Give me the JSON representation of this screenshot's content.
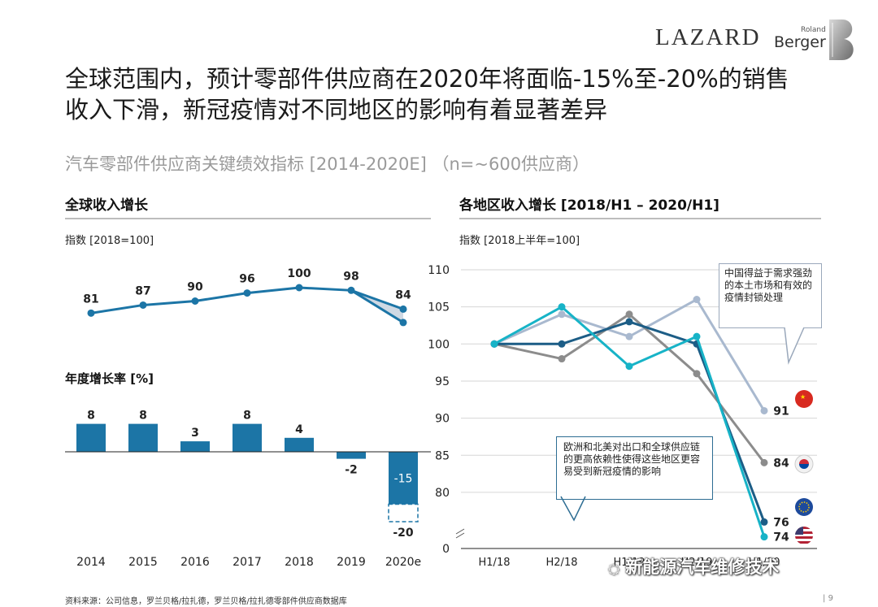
{
  "header": {
    "logo_lazard": "LAZARD",
    "logo_roland": "Roland",
    "logo_berger": "Berger",
    "title_line1": "全球范围内，预计零部件供应商在2020年将面临-15%至-20%的销售",
    "title_line2": "收入下滑，新冠疫情对不同地区的影响有着显著差异",
    "subtitle": "汽车零部件供应商关键绩效指标 [2014-2020E] （n=~600供应商）"
  },
  "footer": {
    "source": "资料来源：公司信息，罗兰贝格/拉扎德，罗兰贝格/拉扎德零部件供应商数据库",
    "page": "9",
    "watermark": "新能源汽车维修技术"
  },
  "colors": {
    "global": "#1c75a6",
    "china": "#a9b9cf",
    "korea": "#8c8c8c",
    "europe": "#1c5d86",
    "usa": "#17b3c7",
    "bar": "#1c75a6",
    "callout_blue": "#2d6d93"
  },
  "chart_data": [
    {
      "type": "line",
      "title": "全球收入增长",
      "ylabel": "指数 [2018=100]",
      "categories": [
        "2014",
        "2015",
        "2016",
        "2017",
        "2018",
        "2019",
        "2020e"
      ],
      "series": [
        {
          "name": "Index",
          "values": [
            81,
            87,
            90,
            96,
            100,
            98,
            84
          ]
        },
        {
          "name": "Index (low case)",
          "values": [
            null,
            null,
            null,
            null,
            null,
            98,
            74
          ]
        }
      ],
      "labels": [
        "81",
        "87",
        "90",
        "96",
        "100",
        "98",
        "84",
        "74"
      ]
    },
    {
      "type": "bar",
      "title": "年度增长率 [%]",
      "categories": [
        "2014",
        "2015",
        "2016",
        "2017",
        "2018",
        "2019",
        "2020e"
      ],
      "values": [
        8,
        8,
        3,
        8,
        4,
        -2,
        -15
      ],
      "range_low": {
        "category": "2020e",
        "value": -20
      },
      "labels": [
        "8",
        "8",
        "3",
        "8",
        "4",
        "-2",
        "-15",
        "-20"
      ]
    },
    {
      "type": "line",
      "title": "各地区收入增长 [2018/H1 – 2020/H1]",
      "ylabel": "指数 [2018上半年=100]",
      "categories": [
        "H1/18",
        "H2/18",
        "H1/19",
        "H2/19",
        "H1/20"
      ],
      "visible_categories": [
        "H1/18",
        "H2/18",
        "H1/19",
        "H2/19",
        "H1/20"
      ],
      "yticks": [
        "110",
        "105",
        "100",
        "95",
        "90",
        "85",
        "80",
        "0"
      ],
      "ylim": [
        75,
        110
      ],
      "axis_break": true,
      "series": [
        {
          "name": "China",
          "values": [
            100,
            104,
            101,
            106,
            91
          ]
        },
        {
          "name": "Korea",
          "values": [
            100,
            98,
            104,
            96,
            84
          ]
        },
        {
          "name": "Europe",
          "values": [
            100,
            100,
            103,
            100,
            76
          ]
        },
        {
          "name": "USA",
          "values": [
            100,
            105,
            97,
            101,
            74
          ]
        }
      ],
      "end_labels": [
        "91",
        "84",
        "76",
        "74"
      ],
      "callout_top": "中国得益于需求强劲的本土市场和有效的疫情封锁处理",
      "callout_bottom": "欧洲和北美对出口和全球供应链的更高依赖性使得这些地区更容易受到新冠疫情的影响"
    }
  ]
}
